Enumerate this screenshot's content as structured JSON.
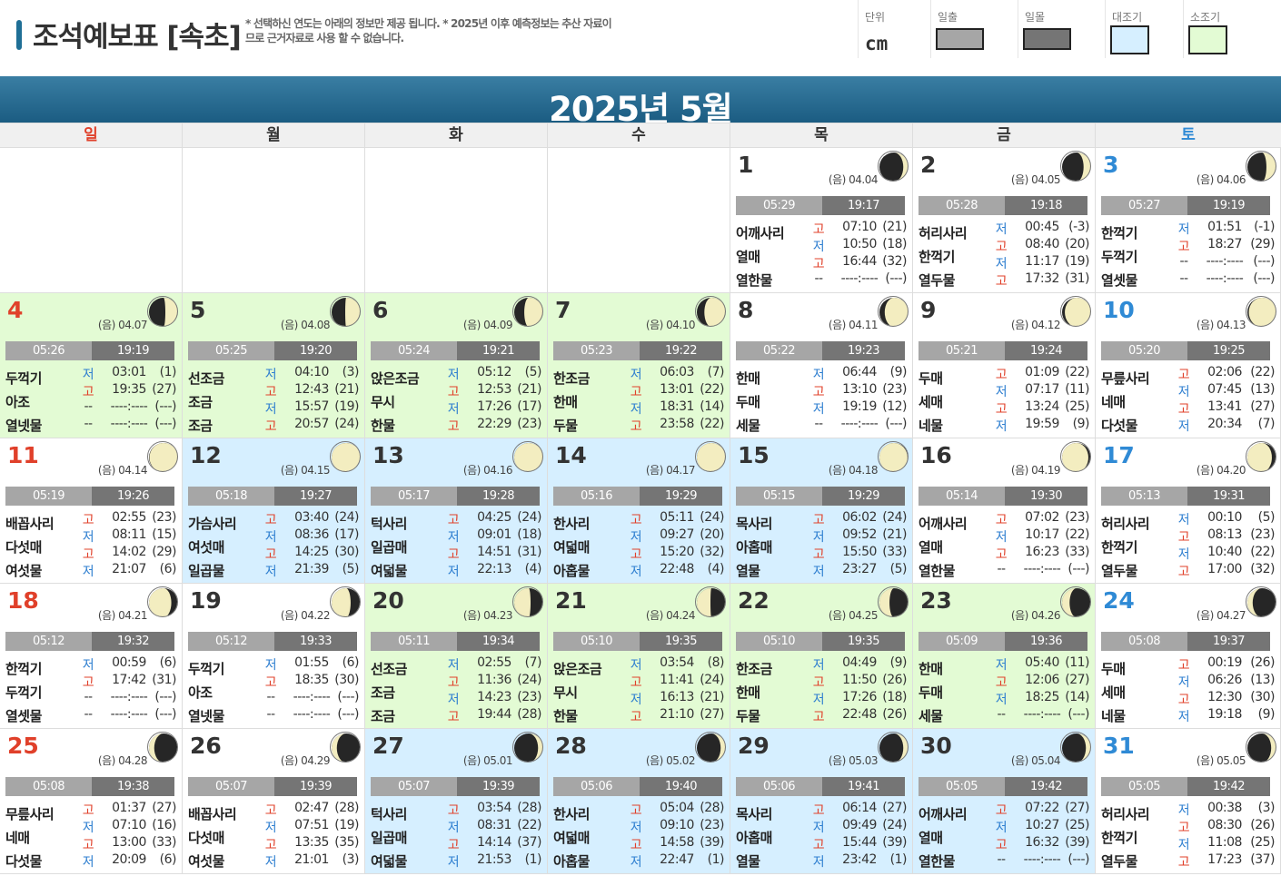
{
  "header": {
    "title": "조석예보표 [속초]",
    "notes": "* 선택하신 연도는 아래의 정보만 제공 됩니다. * 2025년 이후 예측정보는 추산 자료이므로 근거자료로 사용 할 수 없습니다."
  },
  "legend": {
    "unit_label": "단위",
    "unit_value": "cm",
    "sunrise_label": "일출",
    "sunset_label": "일몰",
    "spring_label": "대조기",
    "neap_label": "소조기",
    "colors": {
      "sunrise": "#a6a6a6",
      "sunset": "#757575",
      "spring": "#d6efff",
      "neap": "#e3fbd4"
    }
  },
  "month_title": "2025년 5월",
  "weekdays": [
    "일",
    "월",
    "화",
    "수",
    "목",
    "금",
    "토"
  ],
  "leading_blanks": 4,
  "days": [
    {
      "d": "1",
      "lunar": "(음) 04.04",
      "phase": 0.13,
      "bg": "w",
      "sunrise": "05:29",
      "sunset": "19:17",
      "names": [
        "어깨사리",
        "열매",
        "열한물"
      ],
      "tides": [
        [
          "고",
          "07:10",
          "(21)"
        ],
        [
          "저",
          "10:50",
          "(18)"
        ],
        [
          "고",
          "16:44",
          "(32)"
        ],
        [
          "--",
          "----:----",
          "(---)"
        ]
      ]
    },
    {
      "d": "2",
      "lunar": "(음) 04.05",
      "phase": 0.17,
      "bg": "w",
      "sunrise": "05:28",
      "sunset": "19:18",
      "names": [
        "허리사리",
        "한꺽기",
        "열두물"
      ],
      "tides": [
        [
          "저",
          "00:45",
          "(-3)"
        ],
        [
          "고",
          "08:40",
          "(20)"
        ],
        [
          "저",
          "11:17",
          "(19)"
        ],
        [
          "고",
          "17:32",
          "(31)"
        ]
      ]
    },
    {
      "d": "3",
      "lunar": "(음) 04.06",
      "phase": 0.2,
      "bg": "w",
      "sunrise": "05:27",
      "sunset": "19:19",
      "names": [
        "한꺽기",
        "두꺽기",
        "열셋물"
      ],
      "tides": [
        [
          "저",
          "01:51",
          "(-1)"
        ],
        [
          "고",
          "18:27",
          "(29)"
        ],
        [
          "--",
          "----:----",
          "(---)"
        ],
        [
          "--",
          "----:----",
          "(---)"
        ]
      ]
    },
    {
      "d": "4",
      "lunar": "(음) 04.07",
      "phase": 0.23,
      "bg": "g",
      "sunrise": "05:26",
      "sunset": "19:19",
      "names": [
        "두꺽기",
        "아조",
        "열넷물"
      ],
      "tides": [
        [
          "저",
          "03:01",
          "(1)"
        ],
        [
          "고",
          "19:35",
          "(27)"
        ],
        [
          "--",
          "----:----",
          "(---)"
        ],
        [
          "--",
          "----:----",
          "(---)"
        ]
      ]
    },
    {
      "d": "5",
      "lunar": "(음) 04.08",
      "phase": 0.26,
      "bg": "g",
      "sunrise": "05:25",
      "sunset": "19:20",
      "names": [
        "선조금",
        "조금",
        "조금"
      ],
      "tides": [
        [
          "저",
          "04:10",
          "(3)"
        ],
        [
          "고",
          "12:43",
          "(21)"
        ],
        [
          "저",
          "15:57",
          "(19)"
        ],
        [
          "고",
          "20:57",
          "(24)"
        ]
      ]
    },
    {
      "d": "6",
      "lunar": "(음) 04.09",
      "phase": 0.3,
      "bg": "g",
      "sunrise": "05:24",
      "sunset": "19:21",
      "names": [
        "앉은조금",
        "무시",
        "한물"
      ],
      "tides": [
        [
          "저",
          "05:12",
          "(5)"
        ],
        [
          "고",
          "12:53",
          "(21)"
        ],
        [
          "저",
          "17:26",
          "(17)"
        ],
        [
          "고",
          "22:29",
          "(23)"
        ]
      ]
    },
    {
      "d": "7",
      "lunar": "(음) 04.10",
      "phase": 0.33,
      "bg": "g",
      "sunrise": "05:23",
      "sunset": "19:22",
      "names": [
        "한조금",
        "한매",
        "두물"
      ],
      "tides": [
        [
          "저",
          "06:03",
          "(7)"
        ],
        [
          "고",
          "13:01",
          "(22)"
        ],
        [
          "저",
          "18:31",
          "(14)"
        ],
        [
          "고",
          "23:58",
          "(22)"
        ]
      ]
    },
    {
      "d": "8",
      "lunar": "(음) 04.11",
      "phase": 0.36,
      "bg": "w",
      "sunrise": "05:22",
      "sunset": "19:23",
      "names": [
        "한매",
        "두매",
        "세물"
      ],
      "tides": [
        [
          "저",
          "06:44",
          "(9)"
        ],
        [
          "고",
          "13:10",
          "(23)"
        ],
        [
          "저",
          "19:19",
          "(12)"
        ],
        [
          "--",
          "----:----",
          "(---)"
        ]
      ]
    },
    {
      "d": "9",
      "lunar": "(음) 04.12",
      "phase": 0.4,
      "bg": "w",
      "sunrise": "05:21",
      "sunset": "19:24",
      "names": [
        "두매",
        "세매",
        "네물"
      ],
      "tides": [
        [
          "고",
          "01:09",
          "(22)"
        ],
        [
          "저",
          "07:17",
          "(11)"
        ],
        [
          "고",
          "13:24",
          "(25)"
        ],
        [
          "저",
          "19:59",
          "(9)"
        ]
      ]
    },
    {
      "d": "10",
      "lunar": "(음) 04.13",
      "phase": 0.43,
      "bg": "w",
      "sunrise": "05:20",
      "sunset": "19:25",
      "names": [
        "무릎사리",
        "네매",
        "다섯물"
      ],
      "tides": [
        [
          "고",
          "02:06",
          "(22)"
        ],
        [
          "저",
          "07:45",
          "(13)"
        ],
        [
          "고",
          "13:41",
          "(27)"
        ],
        [
          "저",
          "20:34",
          "(7)"
        ]
      ]
    },
    {
      "d": "11",
      "lunar": "(음) 04.14",
      "phase": 0.46,
      "bg": "w",
      "sunrise": "05:19",
      "sunset": "19:26",
      "names": [
        "배꼽사리",
        "다섯매",
        "여섯물"
      ],
      "tides": [
        [
          "고",
          "02:55",
          "(23)"
        ],
        [
          "저",
          "08:11",
          "(15)"
        ],
        [
          "고",
          "14:02",
          "(29)"
        ],
        [
          "저",
          "21:07",
          "(6)"
        ]
      ]
    },
    {
      "d": "12",
      "lunar": "(음) 04.15",
      "phase": 0.5,
      "bg": "b",
      "sunrise": "05:18",
      "sunset": "19:27",
      "names": [
        "가슴사리",
        "여섯매",
        "일곱물"
      ],
      "tides": [
        [
          "고",
          "03:40",
          "(24)"
        ],
        [
          "저",
          "08:36",
          "(17)"
        ],
        [
          "고",
          "14:25",
          "(30)"
        ],
        [
          "저",
          "21:39",
          "(5)"
        ]
      ]
    },
    {
      "d": "13",
      "lunar": "(음) 04.16",
      "phase": 0.5,
      "bg": "b",
      "sunrise": "05:17",
      "sunset": "19:28",
      "names": [
        "턱사리",
        "일곱매",
        "여덟물"
      ],
      "tides": [
        [
          "고",
          "04:25",
          "(24)"
        ],
        [
          "저",
          "09:01",
          "(18)"
        ],
        [
          "고",
          "14:51",
          "(31)"
        ],
        [
          "저",
          "22:13",
          "(4)"
        ]
      ]
    },
    {
      "d": "14",
      "lunar": "(음) 04.17",
      "phase": 0.53,
      "bg": "b",
      "sunrise": "05:16",
      "sunset": "19:29",
      "names": [
        "한사리",
        "여덟매",
        "아홉물"
      ],
      "tides": [
        [
          "고",
          "05:11",
          "(24)"
        ],
        [
          "저",
          "09:27",
          "(20)"
        ],
        [
          "고",
          "15:20",
          "(32)"
        ],
        [
          "저",
          "22:48",
          "(4)"
        ]
      ]
    },
    {
      "d": "15",
      "lunar": "(음) 04.18",
      "phase": 0.56,
      "bg": "b",
      "sunrise": "05:15",
      "sunset": "19:29",
      "names": [
        "목사리",
        "아홉매",
        "열물"
      ],
      "tides": [
        [
          "고",
          "06:02",
          "(24)"
        ],
        [
          "저",
          "09:52",
          "(21)"
        ],
        [
          "고",
          "15:50",
          "(33)"
        ],
        [
          "저",
          "23:27",
          "(5)"
        ]
      ]
    },
    {
      "d": "16",
      "lunar": "(음) 04.19",
      "phase": 0.6,
      "bg": "w",
      "sunrise": "05:14",
      "sunset": "19:30",
      "names": [
        "어깨사리",
        "열매",
        "열한물"
      ],
      "tides": [
        [
          "고",
          "07:02",
          "(23)"
        ],
        [
          "저",
          "10:17",
          "(22)"
        ],
        [
          "고",
          "16:23",
          "(33)"
        ],
        [
          "--",
          "----:----",
          "(---)"
        ]
      ]
    },
    {
      "d": "17",
      "lunar": "(음) 04.20",
      "phase": 0.63,
      "bg": "w",
      "sunrise": "05:13",
      "sunset": "19:31",
      "names": [
        "허리사리",
        "한꺽기",
        "열두물"
      ],
      "tides": [
        [
          "저",
          "00:10",
          "(5)"
        ],
        [
          "고",
          "08:13",
          "(23)"
        ],
        [
          "저",
          "10:40",
          "(22)"
        ],
        [
          "고",
          "17:00",
          "(32)"
        ]
      ]
    },
    {
      "d": "18",
      "lunar": "(음) 04.21",
      "phase": 0.66,
      "bg": "w",
      "sunrise": "05:12",
      "sunset": "19:32",
      "names": [
        "한꺽기",
        "두꺽기",
        "열셋물"
      ],
      "tides": [
        [
          "저",
          "00:59",
          "(6)"
        ],
        [
          "고",
          "17:42",
          "(31)"
        ],
        [
          "--",
          "----:----",
          "(---)"
        ],
        [
          "--",
          "----:----",
          "(---)"
        ]
      ]
    },
    {
      "d": "19",
      "lunar": "(음) 04.22",
      "phase": 0.7,
      "bg": "w",
      "sunrise": "05:12",
      "sunset": "19:33",
      "names": [
        "두꺽기",
        "아조",
        "열넷물"
      ],
      "tides": [
        [
          "저",
          "01:55",
          "(6)"
        ],
        [
          "고",
          "18:35",
          "(30)"
        ],
        [
          "--",
          "----:----",
          "(---)"
        ],
        [
          "--",
          "----:----",
          "(---)"
        ]
      ]
    },
    {
      "d": "20",
      "lunar": "(음) 04.23",
      "phase": 0.73,
      "bg": "g",
      "sunrise": "05:11",
      "sunset": "19:34",
      "names": [
        "선조금",
        "조금",
        "조금"
      ],
      "tides": [
        [
          "저",
          "02:55",
          "(7)"
        ],
        [
          "고",
          "11:36",
          "(24)"
        ],
        [
          "저",
          "14:23",
          "(23)"
        ],
        [
          "고",
          "19:44",
          "(28)"
        ]
      ]
    },
    {
      "d": "21",
      "lunar": "(음) 04.24",
      "phase": 0.76,
      "bg": "g",
      "sunrise": "05:10",
      "sunset": "19:35",
      "names": [
        "앉은조금",
        "무시",
        "한물"
      ],
      "tides": [
        [
          "저",
          "03:54",
          "(8)"
        ],
        [
          "고",
          "11:41",
          "(24)"
        ],
        [
          "저",
          "16:13",
          "(21)"
        ],
        [
          "고",
          "21:10",
          "(27)"
        ]
      ]
    },
    {
      "d": "22",
      "lunar": "(음) 04.25",
      "phase": 0.8,
      "bg": "g",
      "sunrise": "05:10",
      "sunset": "19:35",
      "names": [
        "한조금",
        "한매",
        "두물"
      ],
      "tides": [
        [
          "저",
          "04:49",
          "(9)"
        ],
        [
          "고",
          "11:50",
          "(26)"
        ],
        [
          "저",
          "17:26",
          "(18)"
        ],
        [
          "고",
          "22:48",
          "(26)"
        ]
      ]
    },
    {
      "d": "23",
      "lunar": "(음) 04.26",
      "phase": 0.83,
      "bg": "g",
      "sunrise": "05:09",
      "sunset": "19:36",
      "names": [
        "한매",
        "두매",
        "세물"
      ],
      "tides": [
        [
          "저",
          "05:40",
          "(11)"
        ],
        [
          "고",
          "12:06",
          "(27)"
        ],
        [
          "저",
          "18:25",
          "(14)"
        ],
        [
          "--",
          "----:----",
          "(---)"
        ]
      ]
    },
    {
      "d": "24",
      "lunar": "(음) 04.27",
      "phase": 0.86,
      "bg": "w",
      "sunrise": "05:08",
      "sunset": "19:37",
      "names": [
        "두매",
        "세매",
        "네물"
      ],
      "tides": [
        [
          "고",
          "00:19",
          "(26)"
        ],
        [
          "저",
          "06:26",
          "(13)"
        ],
        [
          "고",
          "12:30",
          "(30)"
        ],
        [
          "저",
          "19:18",
          "(9)"
        ]
      ]
    },
    {
      "d": "25",
      "lunar": "(음) 04.28",
      "phase": 0.9,
      "bg": "w",
      "sunrise": "05:08",
      "sunset": "19:38",
      "names": [
        "무릎사리",
        "네매",
        "다섯물"
      ],
      "tides": [
        [
          "고",
          "01:37",
          "(27)"
        ],
        [
          "저",
          "07:10",
          "(16)"
        ],
        [
          "고",
          "13:00",
          "(33)"
        ],
        [
          "저",
          "20:09",
          "(6)"
        ]
      ]
    },
    {
      "d": "26",
      "lunar": "(음) 04.29",
      "phase": 0.93,
      "bg": "w",
      "sunrise": "05:07",
      "sunset": "19:39",
      "names": [
        "배꼽사리",
        "다섯매",
        "여섯물"
      ],
      "tides": [
        [
          "고",
          "02:47",
          "(28)"
        ],
        [
          "저",
          "07:51",
          "(19)"
        ],
        [
          "고",
          "13:35",
          "(35)"
        ],
        [
          "저",
          "21:01",
          "(3)"
        ]
      ]
    },
    {
      "d": "27",
      "lunar": "(음) 05.01",
      "phase": 0.0,
      "bg": "b",
      "sunrise": "05:07",
      "sunset": "19:39",
      "names": [
        "턱사리",
        "일곱매",
        "여덟물"
      ],
      "tides": [
        [
          "고",
          "03:54",
          "(28)"
        ],
        [
          "저",
          "08:31",
          "(22)"
        ],
        [
          "고",
          "14:14",
          "(37)"
        ],
        [
          "저",
          "21:53",
          "(1)"
        ]
      ]
    },
    {
      "d": "28",
      "lunar": "(음) 05.02",
      "phase": 0.04,
      "bg": "b",
      "sunrise": "05:06",
      "sunset": "19:40",
      "names": [
        "한사리",
        "여덟매",
        "아홉물"
      ],
      "tides": [
        [
          "고",
          "05:04",
          "(28)"
        ],
        [
          "저",
          "09:10",
          "(23)"
        ],
        [
          "고",
          "14:58",
          "(39)"
        ],
        [
          "저",
          "22:47",
          "(1)"
        ]
      ]
    },
    {
      "d": "29",
      "lunar": "(음) 05.03",
      "phase": 0.07,
      "bg": "b",
      "sunrise": "05:06",
      "sunset": "19:41",
      "names": [
        "목사리",
        "아홉매",
        "열물"
      ],
      "tides": [
        [
          "고",
          "06:14",
          "(27)"
        ],
        [
          "저",
          "09:49",
          "(24)"
        ],
        [
          "고",
          "15:44",
          "(39)"
        ],
        [
          "저",
          "23:42",
          "(1)"
        ]
      ]
    },
    {
      "d": "30",
      "lunar": "(음) 05.04",
      "phase": 0.1,
      "bg": "b",
      "sunrise": "05:05",
      "sunset": "19:42",
      "names": [
        "어깨사리",
        "열매",
        "열한물"
      ],
      "tides": [
        [
          "고",
          "07:22",
          "(27)"
        ],
        [
          "저",
          "10:27",
          "(25)"
        ],
        [
          "고",
          "16:32",
          "(39)"
        ],
        [
          "--",
          "----:----",
          "(---)"
        ]
      ]
    },
    {
      "d": "31",
      "lunar": "(음) 05.05",
      "phase": 0.14,
      "bg": "w",
      "sunrise": "05:05",
      "sunset": "19:42",
      "names": [
        "허리사리",
        "한꺽기",
        "열두물"
      ],
      "tides": [
        [
          "저",
          "00:38",
          "(3)"
        ],
        [
          "고",
          "08:30",
          "(26)"
        ],
        [
          "저",
          "11:08",
          "(25)"
        ],
        [
          "고",
          "17:23",
          "(37)"
        ]
      ]
    }
  ]
}
